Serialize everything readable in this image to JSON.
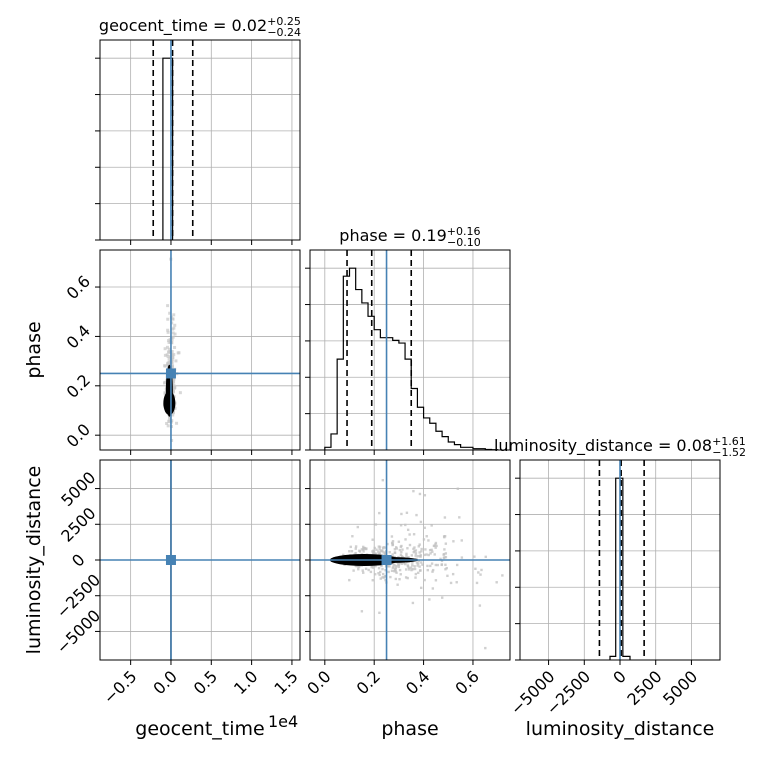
{
  "chart_data": {
    "type": "corner",
    "parameters": [
      "geocent_time",
      "phase",
      "luminosity_distance"
    ],
    "axis_labels": {
      "x": [
        "geocent_time",
        "phase",
        "luminosity_distance"
      ],
      "y": [
        "phase",
        "luminosity_distance"
      ]
    },
    "offset_text": "1e4",
    "grid": true,
    "truths": {
      "geocent_time": 0.0,
      "phase": 0.25,
      "luminosity_distance": 0.0
    },
    "ranges": {
      "geocent_time": [
        -0.88,
        1.6
      ],
      "phase": [
        -0.06,
        0.75
      ],
      "luminosity_distance": [
        -7000,
        7000
      ]
    },
    "ticks": {
      "geocent_time": {
        "values": [
          -0.5,
          0.0,
          0.5,
          1.0,
          1.5
        ],
        "labels": [
          "−0.5",
          "0.0",
          "0.5",
          "1.0",
          "1.5"
        ]
      },
      "phase_x": {
        "values": [
          0.0,
          0.2,
          0.4,
          0.6
        ],
        "labels": [
          "0.0",
          "0.2",
          "0.4",
          "0.6"
        ]
      },
      "phase_y": {
        "values": [
          0.0,
          0.2,
          0.4,
          0.6
        ],
        "labels": [
          "0.0",
          "0.2",
          "0.4",
          "0.6"
        ]
      },
      "distance_x": {
        "values": [
          -5000,
          -2500,
          0,
          2500,
          5000
        ],
        "labels": [
          "−5000",
          "−2500",
          "0",
          "2500",
          "5000"
        ]
      },
      "distance_y": {
        "values": [
          -5000,
          -2500,
          0,
          2500,
          5000
        ],
        "labels": [
          "−5000",
          "−2500",
          "0",
          "2500",
          "5000"
        ]
      }
    },
    "titles": [
      {
        "param": "geocent_time",
        "text": "geocent_time = 0.02",
        "sup": "+0.25",
        "sub": "−0.24"
      },
      {
        "param": "phase",
        "text": "phase = 0.19",
        "sup": "+0.16",
        "sub": "−0.10"
      },
      {
        "param": "luminosity_distance",
        "text": "luminosity_distance = 0.08",
        "sup": "+1.61",
        "sub": "−1.52"
      }
    ],
    "marginals": {
      "geocent_time": {
        "edges": [
          -0.1,
          -0.02,
          0.02
        ],
        "counts": [
          1.0,
          1.0
        ],
        "quantiles": [
          -0.22,
          0.02,
          0.27
        ]
      },
      "phase": {
        "edges": [
          0.0,
          0.025,
          0.05,
          0.075,
          0.1,
          0.125,
          0.15,
          0.175,
          0.2,
          0.225,
          0.25,
          0.275,
          0.3,
          0.325,
          0.35,
          0.375,
          0.4,
          0.425,
          0.45,
          0.475,
          0.5,
          0.525,
          0.55,
          0.575,
          0.6,
          0.625,
          0.65,
          0.675,
          0.7
        ],
        "counts": [
          0.01,
          0.06,
          0.34,
          0.65,
          0.68,
          0.6,
          0.55,
          0.5,
          0.45,
          0.42,
          0.42,
          0.41,
          0.4,
          0.34,
          0.23,
          0.16,
          0.12,
          0.1,
          0.07,
          0.05,
          0.03,
          0.02,
          0.01,
          0.01,
          0.005,
          0.005,
          0.002,
          0.001
        ],
        "quantiles": [
          0.09,
          0.19,
          0.35
        ]
      },
      "luminosity_distance": {
        "edges": [
          -700,
          -300,
          200,
          700
        ],
        "counts": [
          0.02,
          1.0,
          0.02
        ],
        "quantiles": [
          -1440,
          80,
          1690
        ]
      }
    }
  }
}
